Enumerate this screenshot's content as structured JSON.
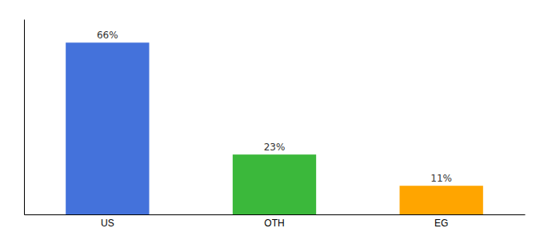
{
  "chart_data": {
    "type": "bar",
    "categories": [
      "US",
      "OTH",
      "EG"
    ],
    "values": [
      66,
      23,
      11
    ],
    "value_labels": [
      "66%",
      "23%",
      "11%"
    ],
    "colors": [
      "#4472db",
      "#3bb83b",
      "#ffa500"
    ],
    "ylim": [
      0,
      75
    ],
    "data_labels": true,
    "tick_labels": "x"
  }
}
